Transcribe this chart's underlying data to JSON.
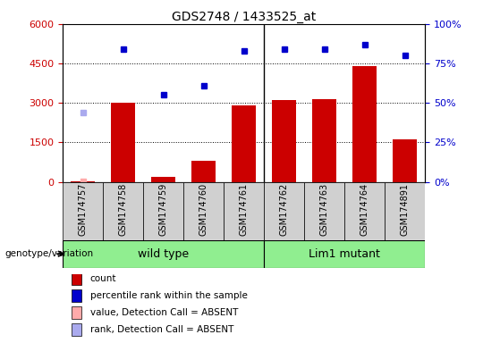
{
  "title": "GDS2748 / 1433525_at",
  "samples": [
    "GSM174757",
    "GSM174758",
    "GSM174759",
    "GSM174760",
    "GSM174761",
    "GSM174762",
    "GSM174763",
    "GSM174764",
    "GSM174891"
  ],
  "counts": [
    30,
    3000,
    200,
    800,
    2900,
    3100,
    3150,
    4400,
    1600
  ],
  "percentile_ranks_pct": [
    null,
    84,
    55,
    61,
    83,
    84,
    84,
    87,
    80
  ],
  "absent_count": 30,
  "absent_count_idx": 0,
  "absent_rank_pct": 44,
  "absent_rank_idx": 0,
  "left_ylim": [
    0,
    6000
  ],
  "left_yticks": [
    0,
    1500,
    3000,
    4500,
    6000
  ],
  "right_yticks": [
    0,
    25,
    50,
    75,
    100
  ],
  "bar_color": "#CC0000",
  "rank_color": "#0000CC",
  "absent_value_color": "#FFAAAA",
  "absent_rank_color": "#AAAAEE",
  "ylabel_left_color": "#CC0000",
  "ylabel_right_color": "#0000CC",
  "wt_group": [
    0,
    1,
    2,
    3,
    4
  ],
  "lm_group": [
    5,
    6,
    7,
    8
  ],
  "wt_label": "wild type",
  "lm_label": "Lim1 mutant",
  "group_color": "#90EE90",
  "sample_bg_color": "#D0D0D0",
  "legend_items": [
    [
      "#CC0000",
      "count"
    ],
    [
      "#0000CC",
      "percentile rank within the sample"
    ],
    [
      "#FFAAAA",
      "value, Detection Call = ABSENT"
    ],
    [
      "#AAAAEE",
      "rank, Detection Call = ABSENT"
    ]
  ],
  "genotype_label": "genotype/variation"
}
